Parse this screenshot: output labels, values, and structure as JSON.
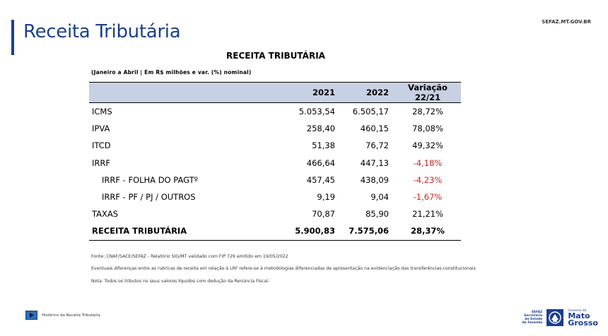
{
  "header": {
    "title": "Receita Tributária",
    "site": "SEFAZ.MT.GOV.BR"
  },
  "table": {
    "title": "RECEITA TRIBUTÁRIA",
    "subtitle": "(Janeiro a Abril | Em R$ milhões e var. (%) nominal)",
    "columns": [
      "",
      "2021",
      "2022",
      "Variação 22/21"
    ],
    "rows": [
      {
        "name": "ICMS",
        "v2021": "5.053,54",
        "v2022": "6.505,17",
        "var": "28,72%"
      },
      {
        "name": "IPVA",
        "v2021": "258,40",
        "v2022": "460,15",
        "var": "78,08%"
      },
      {
        "name": "ITCD",
        "v2021": "51,38",
        "v2022": "76,72",
        "var": "49,32%"
      },
      {
        "name": "IRRF",
        "v2021": "466,64",
        "v2022": "447,13",
        "var": "-4,18%"
      },
      {
        "name": "IRRF - FOLHA DO PAGTº",
        "v2021": "457,45",
        "v2022": "438,09",
        "var": "-4,23%"
      },
      {
        "name": "IRRF - PF / PJ / OUTROS",
        "v2021": "9,19",
        "v2022": "9,04",
        "var": "-1,67%"
      },
      {
        "name": "TAXAS",
        "v2021": "70,87",
        "v2022": "85,90",
        "var": "21,21%"
      },
      {
        "name": "RECEITA TRIBUTÁRIA",
        "v2021": "5.900,83",
        "v2022": "7.575,06",
        "var": "28,37%"
      }
    ],
    "negative_color": "#d42020",
    "header_bg": "#c8d0e3"
  },
  "notes": {
    "source": "Fonte: CNAF/SACE/SEFAZ - Relatório SIG/MT validado com FIP 729 emitido em 19/05/2022",
    "diff": "Eventuais diferenças entre as rubricas de receita em relação à LRF refere-se à metodologias diferenciadas de apresentação na evidenciação das transferências constitucionais",
    "nota": "Nota: Todos os tributos no seus valores líquidos com dedução da Renúncia Fiscal."
  },
  "footer": {
    "link_label": "Histórico da Receita Tributária",
    "link_icon": "play-icon",
    "logo": {
      "sefaz_lines": [
        "SEFAZ",
        "Secretaria",
        "de Estado",
        "de Fazenda"
      ],
      "gov_small": "Governo de",
      "gov_big_1": "Mato",
      "gov_big_2": "Grosso"
    }
  },
  "colors": {
    "brand_blue": "#1b3f8f"
  }
}
